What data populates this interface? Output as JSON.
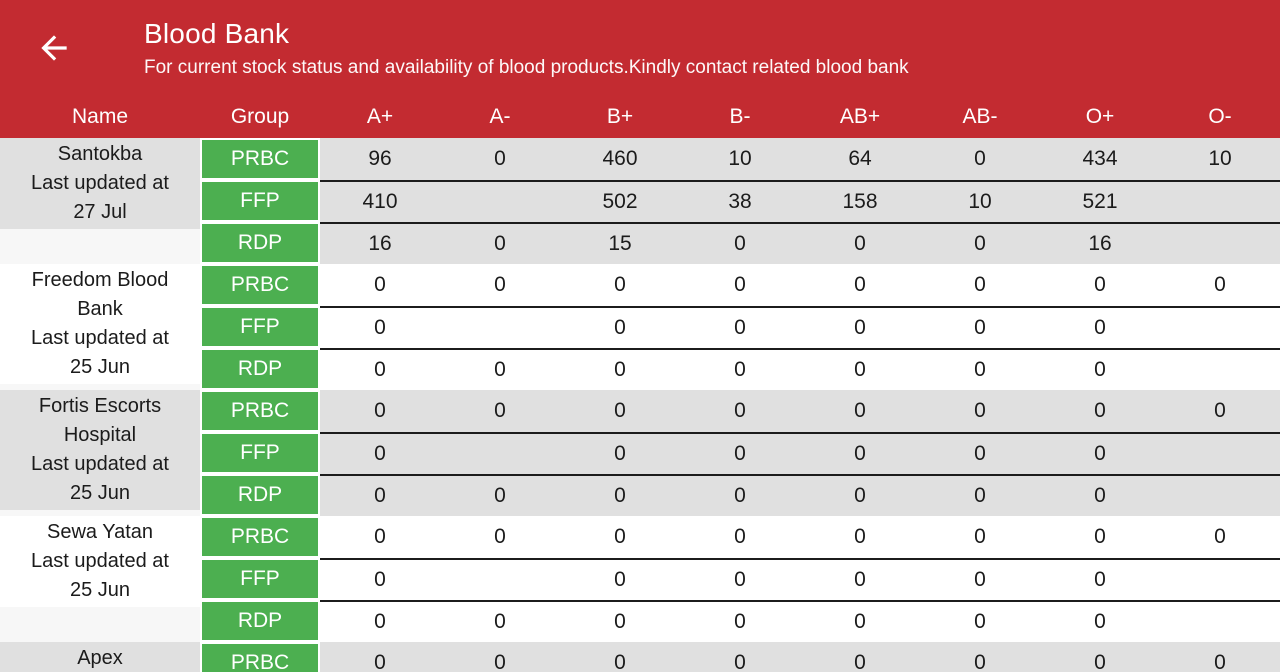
{
  "header": {
    "back_icon": "arrow-back",
    "title": "Blood Bank",
    "subtitle": "For current stock status and availability of blood products.Kindly contact related blood bank"
  },
  "table": {
    "columns": [
      "Name",
      "Group",
      "A+",
      "A-",
      "B+",
      "B-",
      "AB+",
      "AB-",
      "O+",
      "O-"
    ],
    "banks": [
      {
        "name": "Santokba",
        "updated": "Last updated at 27 Jul",
        "name_lines": [
          "Santokba",
          "Last updated at",
          "27 Jul"
        ],
        "shade": "gray",
        "rows": [
          {
            "group": "PRBC",
            "values": [
              "96",
              "0",
              "460",
              "10",
              "64",
              "0",
              "434",
              "10"
            ]
          },
          {
            "group": "FFP",
            "values": [
              "410",
              "",
              "502",
              "38",
              "158",
              "10",
              "521",
              ""
            ]
          },
          {
            "group": "RDP",
            "values": [
              "16",
              "0",
              "15",
              "0",
              "0",
              "0",
              "16",
              ""
            ]
          }
        ]
      },
      {
        "name": "Freedom Blood Bank",
        "updated": "Last updated at 25 Jun",
        "name_lines": [
          "Freedom Blood",
          "Bank",
          "Last updated at",
          "25 Jun"
        ],
        "shade": "white",
        "rows": [
          {
            "group": "PRBC",
            "values": [
              "0",
              "0",
              "0",
              "0",
              "0",
              "0",
              "0",
              "0"
            ]
          },
          {
            "group": "FFP",
            "values": [
              "0",
              "",
              "0",
              "0",
              "0",
              "0",
              "0",
              ""
            ]
          },
          {
            "group": "RDP",
            "values": [
              "0",
              "0",
              "0",
              "0",
              "0",
              "0",
              "0",
              ""
            ]
          }
        ]
      },
      {
        "name": "Fortis Escorts Hospital",
        "updated": "Last updated at 25 Jun",
        "name_lines": [
          "Fortis Escorts",
          "Hospital",
          "Last updated at",
          "25 Jun"
        ],
        "shade": "gray",
        "rows": [
          {
            "group": "PRBC",
            "values": [
              "0",
              "0",
              "0",
              "0",
              "0",
              "0",
              "0",
              "0"
            ]
          },
          {
            "group": "FFP",
            "values": [
              "0",
              "",
              "0",
              "0",
              "0",
              "0",
              "0",
              ""
            ]
          },
          {
            "group": "RDP",
            "values": [
              "0",
              "0",
              "0",
              "0",
              "0",
              "0",
              "0",
              ""
            ]
          }
        ]
      },
      {
        "name": "Sewa Yatan",
        "updated": "Last updated at 25 Jun",
        "name_lines": [
          "Sewa Yatan",
          "Last updated at",
          "25 Jun"
        ],
        "shade": "white",
        "rows": [
          {
            "group": "PRBC",
            "values": [
              "0",
              "0",
              "0",
              "0",
              "0",
              "0",
              "0",
              "0"
            ]
          },
          {
            "group": "FFP",
            "values": [
              "0",
              "",
              "0",
              "0",
              "0",
              "0",
              "0",
              ""
            ]
          },
          {
            "group": "RDP",
            "values": [
              "0",
              "0",
              "0",
              "0",
              "0",
              "0",
              "0",
              ""
            ]
          }
        ]
      },
      {
        "name": "Apex",
        "updated": "",
        "name_lines": [
          "Apex"
        ],
        "shade": "gray",
        "rows": [
          {
            "group": "PRBC",
            "values": [
              "0",
              "0",
              "0",
              "0",
              "0",
              "0",
              "0",
              "0"
            ]
          }
        ]
      }
    ]
  },
  "colors": {
    "header_red": "#c32b31",
    "group_green": "#4caf50",
    "row_gray": "#e0e0e0",
    "divider_dark": "#1c1c1c"
  }
}
